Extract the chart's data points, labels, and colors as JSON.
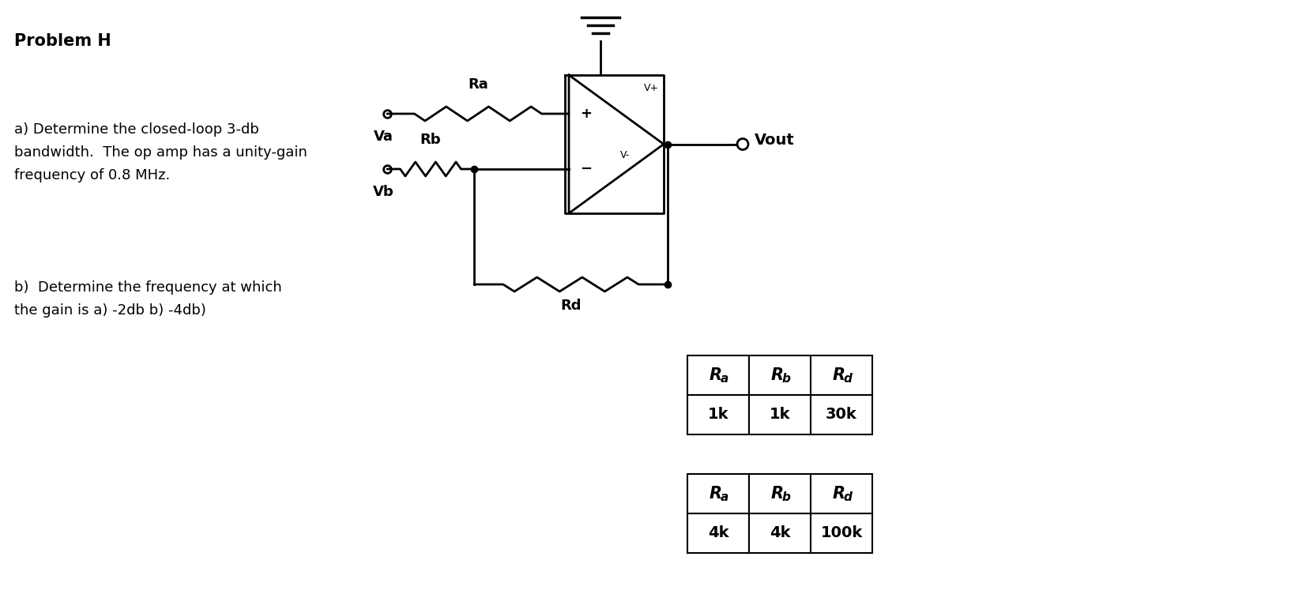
{
  "title": "Problem H",
  "text_a": "a) Determine the closed-loop 3-db\nbandwidth.  The op amp has a unity-gain\nfrequency of 0.8 MHz.",
  "text_b": "b)  Determine the frequency at which\nthe gain is a) -2db b) -4db)",
  "table1_col1_header": "R",
  "table1_col2_header": "R",
  "table1_col3_header": "R",
  "table1_col1_sub": "a",
  "table1_col2_sub": "b",
  "table1_col3_sub": "d",
  "table1_values": [
    "1k",
    "1k",
    "30k"
  ],
  "table2_values": [
    "4k",
    "4k",
    "100k"
  ],
  "bg_color": "#ffffff",
  "line_color": "#000000"
}
